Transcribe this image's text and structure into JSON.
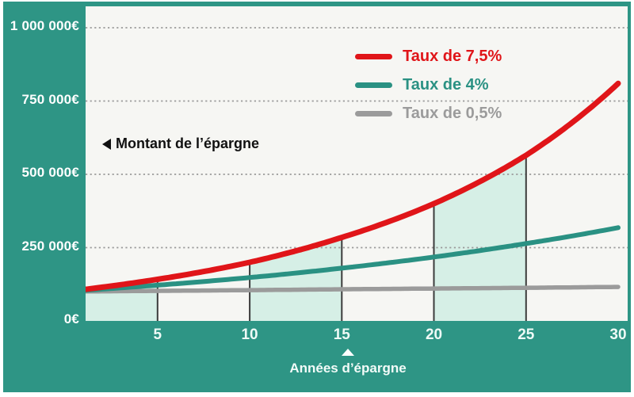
{
  "colors": {
    "frame": "#2e9585",
    "plot_bg": "#f6f6f3",
    "band_fill": "#d6efe6",
    "grid_dots": "#9a9a9a",
    "tick_line": "#3c3c3c",
    "axis_text": "#ffffff",
    "y_axis_title_text": "#111111"
  },
  "y_axis_title": "Montant de l’épargne",
  "x_axis_title": "Années d’épargne",
  "chart_data": {
    "type": "line",
    "title": "",
    "xlabel": "Années d’épargne",
    "ylabel": "Montant de l’épargne",
    "x": [
      0,
      5,
      10,
      15,
      20,
      25,
      30
    ],
    "x_ticks": [
      5,
      10,
      15,
      20,
      25,
      30
    ],
    "y_ticks": [
      {
        "value": 0,
        "label": "0€"
      },
      {
        "value": 250000,
        "label": "250 000€"
      },
      {
        "value": 500000,
        "label": "500 000€"
      },
      {
        "value": 750000,
        "label": "750 000€"
      },
      {
        "value": 1000000,
        "label": "1 000 000€"
      }
    ],
    "xlim": [
      0,
      30
    ],
    "ylim": [
      0,
      1073000
    ],
    "grid": "horizontal-dotted",
    "legend_position": "top-right",
    "series": [
      {
        "name": "Taux de 7,5%",
        "color": "#e01519",
        "values": [
          100000,
          142000,
          200000,
          285000,
          400000,
          565000,
          810000
        ]
      },
      {
        "name": "Taux de 4%",
        "color": "#2a9183",
        "values": [
          100000,
          122000,
          148000,
          180000,
          218000,
          264000,
          318000
        ]
      },
      {
        "name": "Taux de 0,5%",
        "color": "#9b9b9b",
        "values": [
          100000,
          102500,
          105000,
          108000,
          110500,
          113000,
          116000
        ]
      }
    ],
    "shaded_bands_years": [
      [
        0,
        5
      ],
      [
        10,
        15
      ],
      [
        20,
        25
      ]
    ],
    "tick_line_years": [
      5,
      10,
      15,
      20,
      25
    ]
  }
}
